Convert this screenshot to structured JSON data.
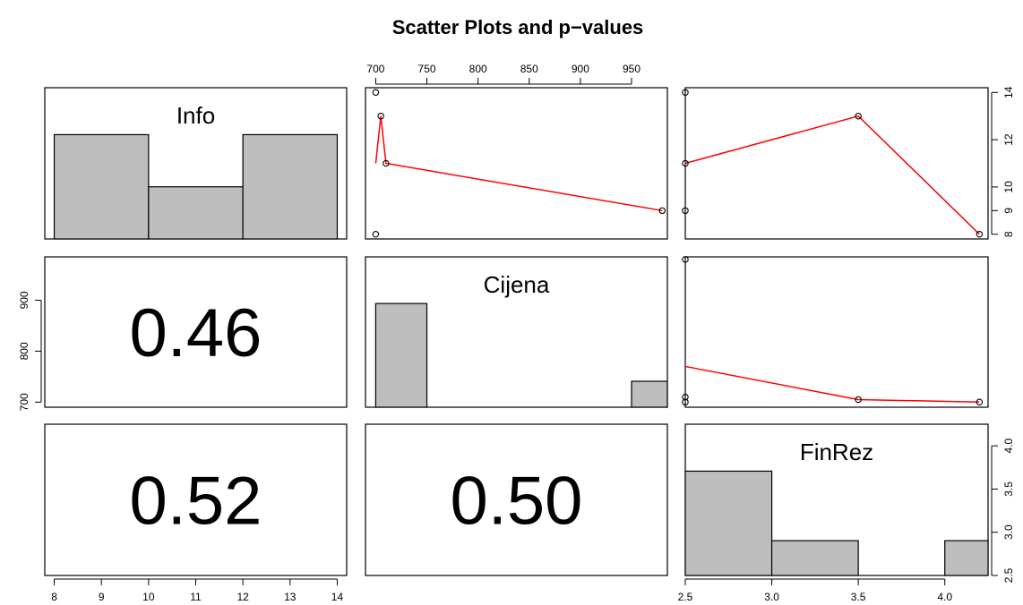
{
  "title": "Scatter Plots and p−values",
  "chart_data": {
    "type": "scatter",
    "title": "Scatter Plots and p−values",
    "variables": [
      "Info",
      "Cijena",
      "FinRez"
    ],
    "observations": {
      "Info": [
        14,
        13,
        11,
        9,
        8
      ],
      "Cijena": [
        700,
        705,
        710,
        980,
        700
      ],
      "FinRez": [
        2.5,
        3.5,
        2.5,
        2.5,
        4.2
      ]
    },
    "scatter_panels": [
      {
        "x_var": "Cijena",
        "y_var": "Info",
        "points": [
          [
            700,
            14
          ],
          [
            705,
            13
          ],
          [
            710,
            11
          ],
          [
            980,
            9
          ],
          [
            700,
            8
          ]
        ],
        "smooth_line": [
          [
            700,
            11
          ],
          [
            705,
            13
          ],
          [
            710,
            11
          ],
          [
            980,
            9
          ]
        ],
        "xlim": [
          690,
          985
        ],
        "ylim": [
          7.8,
          14.2
        ],
        "x_ticks": [
          700,
          750,
          800,
          850,
          900,
          950
        ],
        "x_axis": "top",
        "y_ticks": [
          8,
          9,
          10,
          12,
          14
        ],
        "y_axis": "right"
      },
      {
        "x_var": "FinRez",
        "y_var": "Info",
        "points": [
          [
            2.5,
            14
          ],
          [
            3.5,
            13
          ],
          [
            2.5,
            11
          ],
          [
            2.5,
            9
          ],
          [
            4.2,
            8
          ]
        ],
        "smooth_line": [
          [
            2.5,
            11
          ],
          [
            3.5,
            13
          ],
          [
            4.2,
            8
          ]
        ],
        "xlim": [
          2.5,
          4.25
        ],
        "ylim": [
          7.8,
          14.2
        ],
        "x_ticks": [
          2.5,
          3.0,
          3.5,
          4.0
        ],
        "x_axis": "bottom",
        "y_ticks": [
          8,
          9,
          10,
          12,
          14
        ],
        "y_axis": "right"
      },
      {
        "x_var": "FinRez",
        "y_var": "Cijena",
        "points": [
          [
            2.5,
            980
          ],
          [
            2.5,
            710
          ],
          [
            2.5,
            700
          ],
          [
            3.5,
            705
          ],
          [
            4.2,
            700
          ]
        ],
        "smooth_line": [
          [
            2.5,
            770
          ],
          [
            3.5,
            705
          ],
          [
            4.2,
            700
          ]
        ],
        "xlim": [
          2.5,
          4.25
        ],
        "ylim": [
          690,
          985
        ],
        "y_ticks": [
          700,
          800,
          900
        ],
        "y_axis": "left"
      }
    ],
    "histogram_panels": [
      {
        "var": "Info",
        "label": "Info",
        "bins": [
          [
            8,
            10
          ],
          [
            10,
            12
          ],
          [
            12,
            14
          ]
        ],
        "heights": [
          2,
          1,
          2
        ],
        "xlim": [
          7.8,
          14.2
        ]
      },
      {
        "var": "Cijena",
        "label": "Cijena",
        "bins": [
          [
            700,
            750
          ],
          [
            750,
            800
          ],
          [
            800,
            850
          ],
          [
            850,
            900
          ],
          [
            900,
            950
          ],
          [
            950,
            1000
          ]
        ],
        "heights": [
          4,
          0,
          0,
          0,
          0,
          1
        ],
        "xlim": [
          690,
          985
        ]
      },
      {
        "var": "FinRez",
        "label": "FinRez",
        "bins": [
          [
            2.5,
            3.0
          ],
          [
            3.0,
            3.5
          ],
          [
            3.5,
            4.0
          ],
          [
            4.0,
            4.5
          ]
        ],
        "heights": [
          3,
          1,
          0,
          1
        ],
        "xlim": [
          2.5,
          4.25
        ]
      }
    ],
    "p_value_panels": [
      {
        "row_var": "Cijena",
        "col_var": "Info",
        "value": "0.46"
      },
      {
        "row_var": "FinRez",
        "col_var": "Info",
        "value": "0.52"
      },
      {
        "row_var": "FinRez",
        "col_var": "Cijena",
        "value": "0.50"
      }
    ],
    "outer_axes": {
      "bottom_left": {
        "var": "Info",
        "ticks": [
          8,
          9,
          10,
          11,
          12,
          13,
          14
        ]
      },
      "bottom_right": {
        "var": "FinRez",
        "ticks": [
          "2.5",
          "3.0",
          "3.5",
          "4.0"
        ]
      },
      "top_middle": {
        "var": "Cijena",
        "ticks": [
          700,
          750,
          800,
          850,
          900,
          950
        ]
      },
      "left_middle": {
        "var": "Cijena",
        "ticks": [
          700,
          800,
          900
        ]
      },
      "right_top": {
        "var": "Info",
        "ticks": [
          8,
          9,
          10,
          12,
          14
        ]
      },
      "right_bottom": {
        "var": "FinRez",
        "ticks": [
          "2.5",
          "3.0",
          "3.5",
          "4.0"
        ]
      }
    },
    "grid": false,
    "colors": {
      "histogram_fill": "#bebebe",
      "smooth_line": "#ff0000",
      "points": "#000000",
      "frame": "#000000"
    }
  }
}
